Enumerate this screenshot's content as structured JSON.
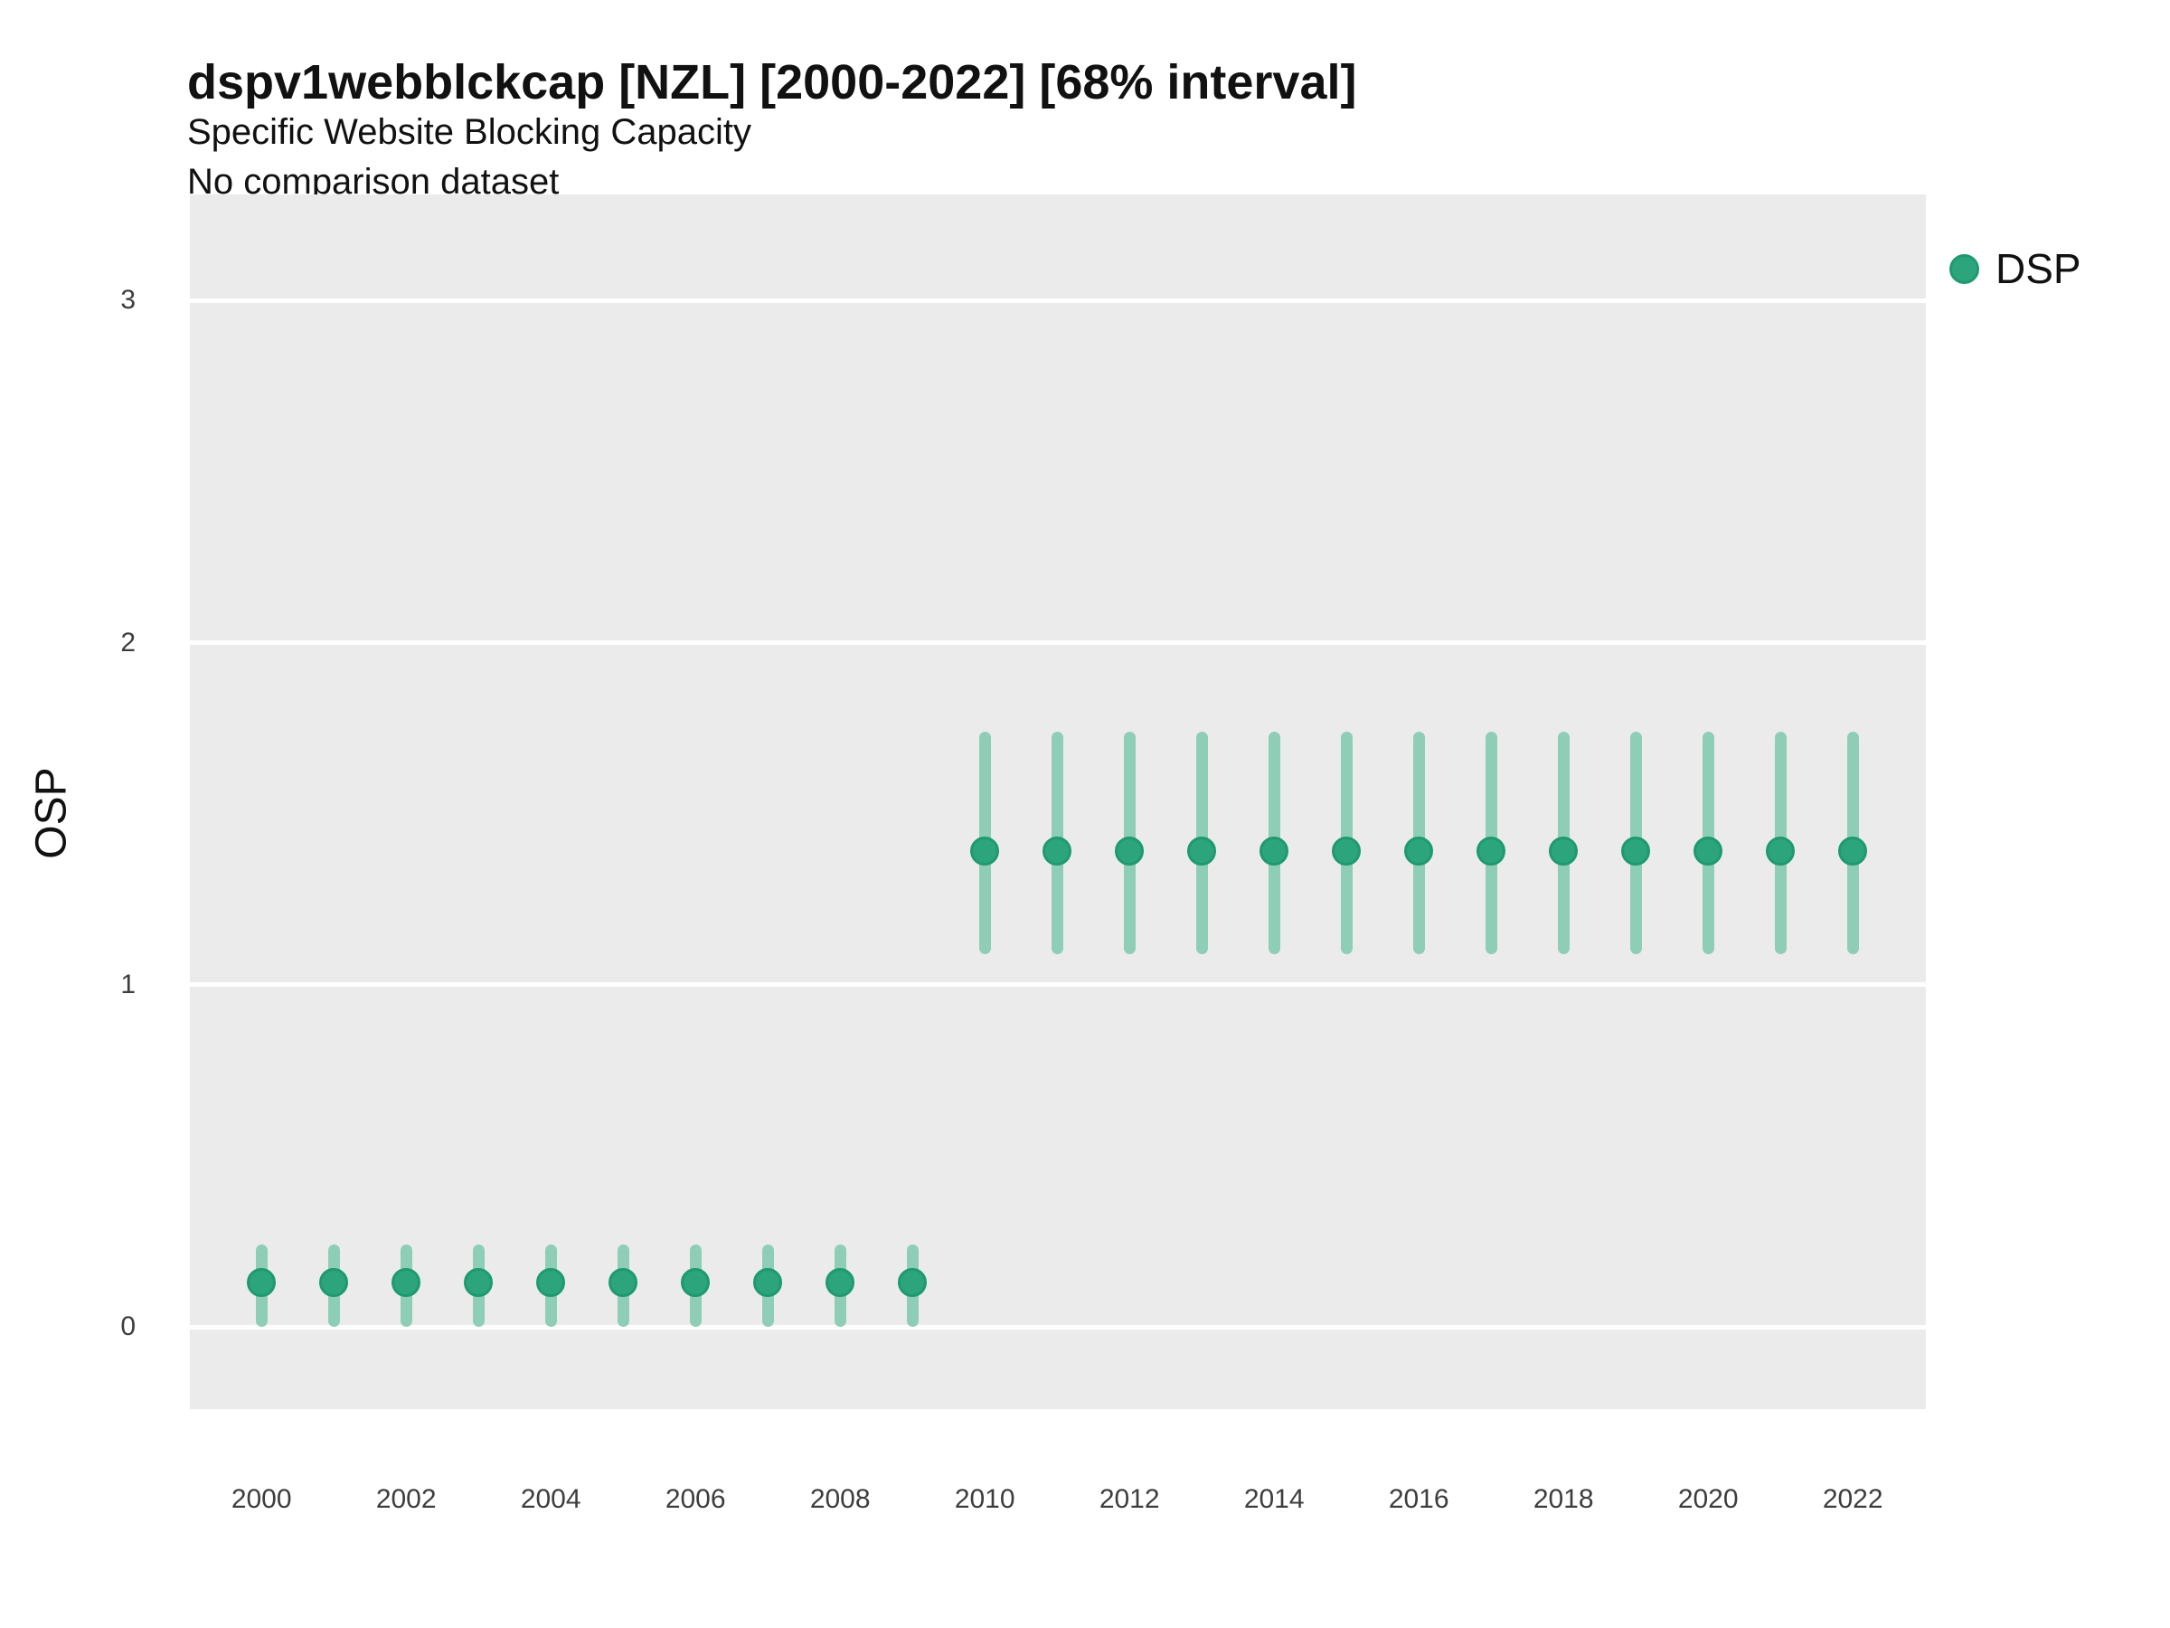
{
  "chart_data": {
    "type": "scatter",
    "variant": "pointrange",
    "title": "dspv1webblckcap [NZL] [2000-2022] [68% interval]",
    "subtitle": "Specific Website Blocking Capacity",
    "subtitle2": "No comparison dataset",
    "xlabel": "",
    "ylabel": "OSP",
    "legend": {
      "position": "right",
      "items": [
        {
          "label": "DSP",
          "color": "#2DA57C"
        }
      ]
    },
    "grid": "horizontal-major-only",
    "panel_bg": "#EBEBEB",
    "grid_color": "#FFFFFF",
    "x_ticks": [
      2000,
      2002,
      2004,
      2006,
      2008,
      2010,
      2012,
      2014,
      2016,
      2018,
      2020,
      2022
    ],
    "y_ticks": [
      0,
      1,
      2,
      3
    ],
    "xlim": [
      1999.01,
      2023.01
    ],
    "ylim": [
      -0.24,
      3.31
    ],
    "series": [
      {
        "name": "DSP",
        "point_color": "#2DA57C",
        "point_edge_color": "#1E9A6E",
        "interval_color": "#8FCEB6",
        "points": [
          {
            "year": 2000,
            "est": 0.13,
            "lo": 0.0,
            "hi": 0.24
          },
          {
            "year": 2001,
            "est": 0.13,
            "lo": 0.0,
            "hi": 0.24
          },
          {
            "year": 2002,
            "est": 0.13,
            "lo": 0.0,
            "hi": 0.24
          },
          {
            "year": 2003,
            "est": 0.13,
            "lo": 0.0,
            "hi": 0.24
          },
          {
            "year": 2004,
            "est": 0.13,
            "lo": 0.0,
            "hi": 0.24
          },
          {
            "year": 2005,
            "est": 0.13,
            "lo": 0.0,
            "hi": 0.24
          },
          {
            "year": 2006,
            "est": 0.13,
            "lo": 0.0,
            "hi": 0.24
          },
          {
            "year": 2007,
            "est": 0.13,
            "lo": 0.0,
            "hi": 0.24
          },
          {
            "year": 2008,
            "est": 0.13,
            "lo": 0.0,
            "hi": 0.24
          },
          {
            "year": 2009,
            "est": 0.13,
            "lo": 0.0,
            "hi": 0.24
          },
          {
            "year": 2010,
            "est": 1.39,
            "lo": 1.09,
            "hi": 1.74
          },
          {
            "year": 2011,
            "est": 1.39,
            "lo": 1.09,
            "hi": 1.74
          },
          {
            "year": 2012,
            "est": 1.39,
            "lo": 1.09,
            "hi": 1.74
          },
          {
            "year": 2013,
            "est": 1.39,
            "lo": 1.09,
            "hi": 1.74
          },
          {
            "year": 2014,
            "est": 1.39,
            "lo": 1.09,
            "hi": 1.74
          },
          {
            "year": 2015,
            "est": 1.39,
            "lo": 1.09,
            "hi": 1.74
          },
          {
            "year": 2016,
            "est": 1.39,
            "lo": 1.09,
            "hi": 1.74
          },
          {
            "year": 2017,
            "est": 1.39,
            "lo": 1.09,
            "hi": 1.74
          },
          {
            "year": 2018,
            "est": 1.39,
            "lo": 1.09,
            "hi": 1.74
          },
          {
            "year": 2019,
            "est": 1.39,
            "lo": 1.09,
            "hi": 1.74
          },
          {
            "year": 2020,
            "est": 1.39,
            "lo": 1.09,
            "hi": 1.74
          },
          {
            "year": 2021,
            "est": 1.39,
            "lo": 1.09,
            "hi": 1.74
          },
          {
            "year": 2022,
            "est": 1.39,
            "lo": 1.09,
            "hi": 1.74
          }
        ]
      }
    ]
  }
}
